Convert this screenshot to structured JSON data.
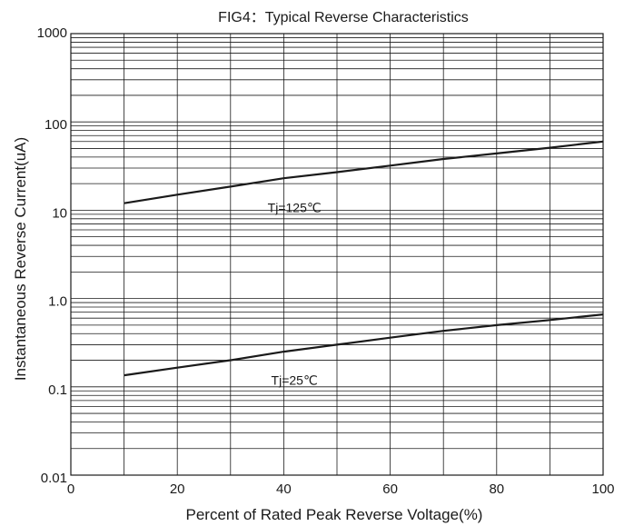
{
  "chart_data": {
    "type": "line",
    "title": "FIG4：Typical Reverse Characteristics",
    "xlabel": "Percent of Rated Peak Reverse Voltage(%)",
    "ylabel": "Instantaneous Reverse Current(uA)",
    "xlim": [
      0,
      100
    ],
    "ylim": [
      0.01,
      1000
    ],
    "yscale": "log",
    "grid": true,
    "x_ticks": [
      0,
      20,
      40,
      60,
      80,
      100
    ],
    "x_tick_labels": [
      "0",
      "20",
      "40",
      "60",
      "80",
      "100"
    ],
    "y_ticks": [
      0.01,
      0.1,
      1,
      10,
      100,
      1000
    ],
    "y_tick_labels": [
      "0.01",
      "0.1",
      "1.0",
      "10",
      "100",
      "1000"
    ],
    "series": [
      {
        "name": "Tj=125℃",
        "x": [
          10,
          20,
          30,
          40,
          50,
          60,
          70,
          80,
          90,
          100
        ],
        "y": [
          12,
          15,
          18.5,
          23,
          27,
          32,
          38,
          44,
          51,
          60
        ]
      },
      {
        "name": "Tj=25℃",
        "x": [
          10,
          20,
          30,
          40,
          50,
          60,
          70,
          80,
          90,
          100
        ],
        "y": [
          0.135,
          0.165,
          0.2,
          0.25,
          0.3,
          0.36,
          0.43,
          0.5,
          0.57,
          0.66
        ]
      }
    ]
  }
}
